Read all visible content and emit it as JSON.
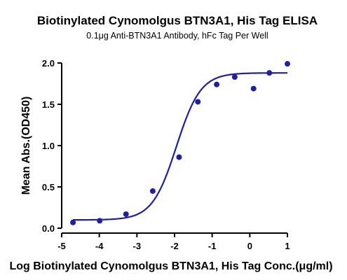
{
  "chart_data": {
    "type": "scatter",
    "title": "Biotinylated Cynomolgus BTN3A1, His Tag ELISA",
    "subtitle": "0.1μg Anti-BTN3A1 Antibody, hFc Tag Per Well",
    "xlabel": "Log Biotinylated Cynomolgus BTN3A1, His Tag Conc.(μg/ml)",
    "ylabel": "Mean Abs.(OD450)",
    "xlim": [
      -5,
      1
    ],
    "ylim": [
      0,
      2.0
    ],
    "xticks": [
      "-5",
      "-4",
      "-3",
      "-2",
      "-1",
      "0",
      "1"
    ],
    "yticks": [
      "0.0",
      "0.5",
      "1.0",
      "1.5",
      "2.0"
    ],
    "grid": false,
    "fit": "sigmoidal 4PL",
    "colors": {
      "series": "#1f1fa0"
    },
    "series": [
      {
        "x": [
          -4.7,
          -3.99,
          -3.29,
          -2.58,
          -1.88,
          -1.38,
          -0.88,
          -0.4,
          0.1,
          0.52,
          1.0
        ],
        "y": [
          0.07,
          0.09,
          0.17,
          0.45,
          0.86,
          1.53,
          1.74,
          1.83,
          1.69,
          1.88,
          1.99
        ]
      }
    ]
  }
}
